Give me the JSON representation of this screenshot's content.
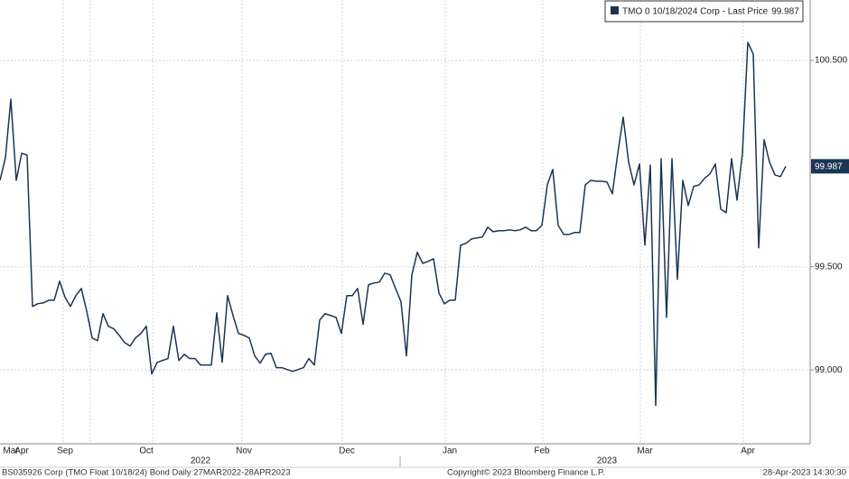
{
  "chart_data": {
    "type": "line",
    "legend_position": "top-right",
    "grid": true,
    "ylim": [
      98.642,
      100.793
    ],
    "yticks": [
      {
        "value": 99,
        "label": "99.000"
      },
      {
        "value": 99.5,
        "label": "99.500"
      },
      {
        "value": 100.5,
        "label": "100.500"
      }
    ],
    "categories": [
      null,
      null,
      "Mar",
      null,
      "Apr",
      null,
      null,
      null,
      null,
      null,
      null,
      null,
      "Sep",
      null,
      null,
      null,
      null,
      null,
      null,
      null,
      null,
      null,
      null,
      null,
      null,
      null,
      null,
      "Oct",
      null,
      null,
      null,
      null,
      null,
      null,
      null,
      null,
      null,
      null,
      null,
      null,
      null,
      null,
      null,
      null,
      null,
      "Nov",
      null,
      null,
      null,
      null,
      null,
      null,
      null,
      null,
      null,
      null,
      null,
      null,
      null,
      null,
      null,
      null,
      null,
      null,
      "Dec",
      null,
      null,
      null,
      null,
      null,
      null,
      null,
      null,
      null,
      null,
      null,
      null,
      null,
      null,
      null,
      null,
      null,
      null,
      "Jan",
      null,
      null,
      null,
      null,
      null,
      null,
      null,
      null,
      null,
      null,
      null,
      null,
      null,
      null,
      null,
      null,
      "Feb",
      null,
      null,
      null,
      null,
      null,
      null,
      null,
      null,
      null,
      null,
      null,
      null,
      null,
      null,
      null,
      null,
      null,
      null,
      "Mar",
      null,
      null,
      null,
      null,
      null,
      null,
      null,
      null,
      null,
      null,
      null,
      null,
      null,
      null,
      null,
      null,
      null,
      null,
      "Apr",
      null,
      null,
      null,
      null,
      null,
      null,
      null
    ],
    "year_labels": [
      "2022",
      "2023"
    ],
    "series": [
      {
        "name": "TMO 0 10/18/2024 Corp - Last Price",
        "color": "#1b3553",
        "values": [
          99.919,
          100.028,
          100.312,
          99.919,
          100.05,
          100.041,
          99.308,
          99.321,
          99.325,
          99.338,
          99.338,
          99.43,
          99.352,
          99.308,
          99.36,
          99.395,
          99.286,
          99.155,
          99.142,
          99.273,
          99.212,
          99.199,
          99.168,
          99.133,
          99.116,
          99.155,
          99.177,
          99.212,
          98.98,
          99.037,
          99.046,
          99.055,
          99.212,
          99.046,
          99.076,
          99.055,
          99.055,
          99.024,
          99.024,
          99.024,
          99.277,
          99.037,
          99.36,
          99.264,
          99.177,
          99.168,
          99.155,
          99.068,
          99.033,
          99.076,
          99.081,
          99.011,
          99.011,
          99.002,
          98.993,
          99.002,
          99.011,
          99.055,
          99.024,
          99.242,
          99.273,
          99.264,
          99.255,
          99.177,
          99.36,
          99.36,
          99.395,
          99.221,
          99.413,
          99.421,
          99.426,
          99.469,
          99.461,
          99.395,
          99.33,
          99.068,
          99.461,
          99.57,
          99.517,
          99.526,
          99.539,
          99.373,
          99.321,
          99.338,
          99.338,
          99.605,
          99.614,
          99.635,
          99.64,
          99.644,
          99.692,
          99.67,
          99.675,
          99.675,
          99.679,
          99.675,
          99.679,
          99.692,
          99.675,
          99.675,
          99.701,
          99.897,
          99.972,
          99.701,
          99.657,
          99.657,
          99.666,
          99.666,
          99.897,
          99.919,
          99.915,
          99.915,
          99.911,
          99.854,
          100.05,
          100.225,
          100.007,
          99.897,
          99.998,
          99.605,
          99.993,
          98.828,
          100.024,
          99.255,
          100.024,
          99.439,
          99.919,
          99.797,
          99.889,
          99.897,
          99.928,
          99.95,
          99.998,
          99.78,
          99.762,
          100.024,
          99.823,
          100.05,
          100.587,
          100.531,
          99.592,
          100.116,
          100.007,
          99.945,
          99.937,
          99.987
        ]
      }
    ],
    "footer_left": "BS035926 Corp (TMO Float 10/18/24) Bond  Daily 27MAR2022-28APR2023",
    "footer_center": "Copyright© 2023 Bloomberg Finance L.P.",
    "footer_right": "28-Apr-2023 14:30:30"
  }
}
